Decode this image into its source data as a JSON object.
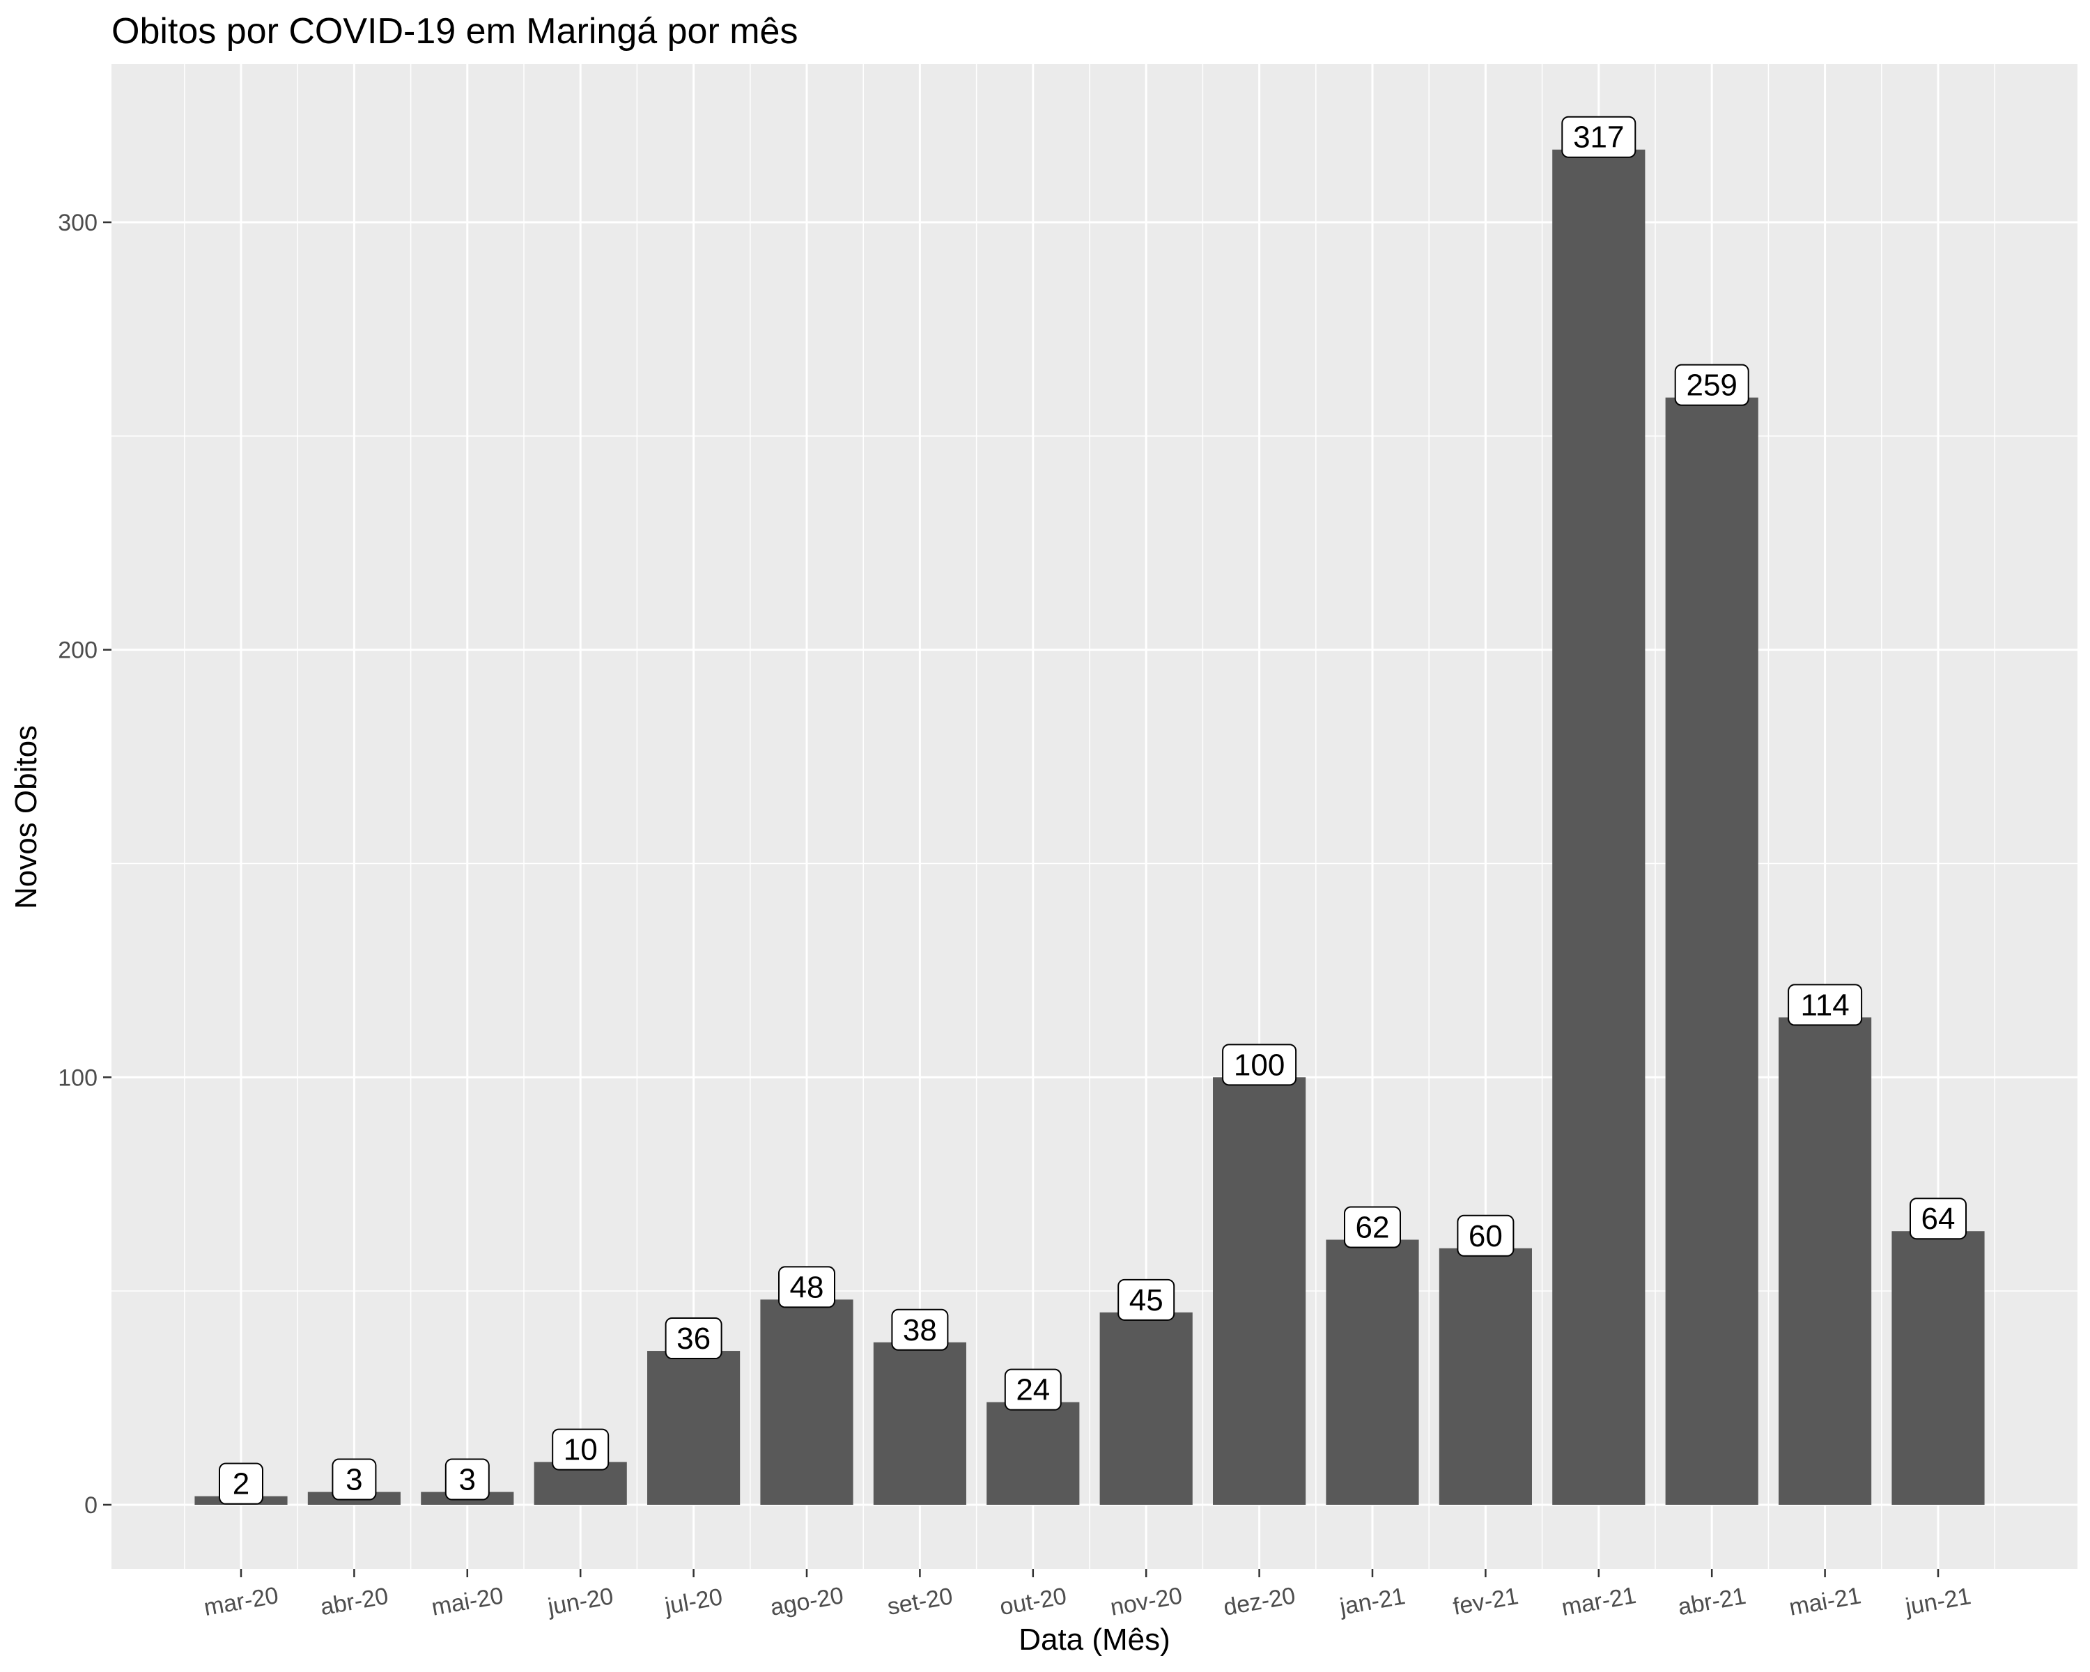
{
  "chart_data": {
    "type": "bar",
    "title": "Obitos por COVID-19 em Maringá por mês",
    "xlabel": "Data (Mês)",
    "ylabel": "Novos Obitos",
    "categories": [
      "mar-20",
      "abr-20",
      "mai-20",
      "jun-20",
      "jul-20",
      "ago-20",
      "set-20",
      "out-20",
      "nov-20",
      "dez-20",
      "jan-21",
      "fev-21",
      "mar-21",
      "abr-21",
      "mai-21",
      "jun-21"
    ],
    "values": [
      2,
      3,
      3,
      10,
      36,
      48,
      38,
      24,
      45,
      100,
      62,
      60,
      317,
      259,
      114,
      64
    ],
    "ylim": [
      -15,
      337
    ],
    "yticks": [
      0,
      100,
      200,
      300
    ],
    "ytick_labels": [
      "0",
      "100",
      "200",
      "300"
    ],
    "grid": true,
    "panel_color": "#ebebeb",
    "bar_color": "#595959",
    "grid_color": "#ffffff"
  }
}
